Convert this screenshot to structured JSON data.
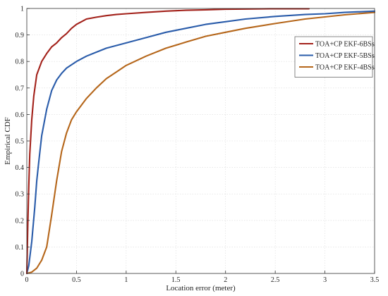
{
  "chart_data": {
    "type": "line",
    "title": "",
    "xlabel": "Location error (meter)",
    "ylabel": "Empirical CDF",
    "xlim": [
      0,
      3.5
    ],
    "ylim": [
      0,
      1
    ],
    "xticks": [
      0,
      0.5,
      1,
      1.5,
      2,
      2.5,
      3,
      3.5
    ],
    "xtick_labels": [
      "0",
      "0.5",
      "1",
      "1.5",
      "2",
      "2.5",
      "3",
      "3.5"
    ],
    "yticks": [
      0,
      0.1,
      0.2,
      0.3,
      0.4,
      0.5,
      0.6,
      0.7,
      0.8,
      0.9,
      1
    ],
    "ytick_labels": [
      "0",
      "0.1",
      "0.2",
      "0.3",
      "0.4",
      "0.5",
      "0.6",
      "0.7",
      "0.8",
      "0.9",
      "1"
    ],
    "grid": true,
    "legend_position": "top-right",
    "series": [
      {
        "name": "TOA+CP EKF-6BSs",
        "color": "#a3221b",
        "x": [
          0,
          0.01,
          0.02,
          0.03,
          0.05,
          0.07,
          0.1,
          0.15,
          0.2,
          0.25,
          0.3,
          0.35,
          0.4,
          0.45,
          0.5,
          0.55,
          0.6,
          0.7,
          0.8,
          0.9,
          1.0,
          1.2,
          1.4,
          1.6,
          1.8,
          2.0,
          2.2,
          2.5,
          2.84
        ],
        "y": [
          0,
          0.18,
          0.33,
          0.45,
          0.58,
          0.67,
          0.75,
          0.8,
          0.83,
          0.855,
          0.87,
          0.89,
          0.905,
          0.925,
          0.94,
          0.95,
          0.96,
          0.967,
          0.973,
          0.977,
          0.98,
          0.985,
          0.99,
          0.993,
          0.995,
          0.997,
          0.998,
          0.999,
          0.999
        ]
      },
      {
        "name": "TOA+CP EKF-5BSs",
        "color": "#2a5caa",
        "x": [
          0,
          0.02,
          0.05,
          0.08,
          0.1,
          0.12,
          0.15,
          0.2,
          0.25,
          0.3,
          0.35,
          0.4,
          0.5,
          0.6,
          0.7,
          0.8,
          1.0,
          1.2,
          1.4,
          1.6,
          1.8,
          2.0,
          2.2,
          2.5,
          2.8,
          3.0,
          3.2,
          3.5
        ],
        "y": [
          0,
          0.03,
          0.12,
          0.25,
          0.35,
          0.42,
          0.52,
          0.62,
          0.69,
          0.73,
          0.755,
          0.775,
          0.8,
          0.82,
          0.835,
          0.85,
          0.87,
          0.89,
          0.91,
          0.925,
          0.94,
          0.95,
          0.96,
          0.97,
          0.977,
          0.98,
          0.985,
          0.99
        ]
      },
      {
        "name": "TOA+CP EKF-4BSs",
        "color": "#b5661a",
        "x": [
          0,
          0.05,
          0.1,
          0.15,
          0.2,
          0.25,
          0.3,
          0.35,
          0.4,
          0.45,
          0.5,
          0.6,
          0.7,
          0.8,
          0.9,
          1.0,
          1.2,
          1.4,
          1.6,
          1.8,
          2.0,
          2.2,
          2.5,
          2.8,
          3.0,
          3.2,
          3.5
        ],
        "y": [
          0,
          0.005,
          0.02,
          0.05,
          0.1,
          0.22,
          0.35,
          0.46,
          0.53,
          0.58,
          0.61,
          0.66,
          0.7,
          0.735,
          0.76,
          0.785,
          0.82,
          0.85,
          0.873,
          0.895,
          0.91,
          0.925,
          0.943,
          0.96,
          0.968,
          0.976,
          0.985
        ]
      }
    ]
  }
}
